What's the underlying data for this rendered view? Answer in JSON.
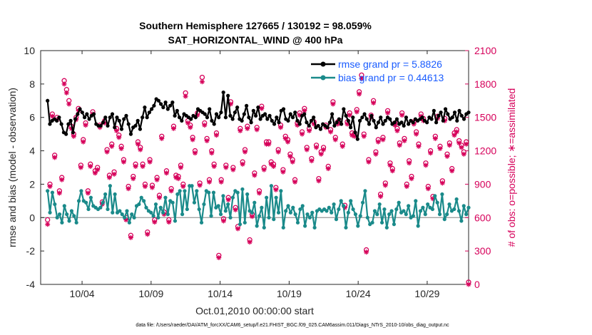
{
  "chart_data": {
    "type": "line",
    "title_line1": "Southern Hemisphere 127665 / 130192 = 98.059%",
    "title_line2": "SAT_HORIZONTAL_WIND @ 400 hPa",
    "xlabel": "Oct.01,2010 00:00:00 start",
    "ylabel_left": "rmse and bias (model - observation)",
    "ylabel_right": "# of obs: o=possible; ∗=assimilated",
    "footnote": "data file: /Users/raeder/DAI/ATM_forcXX/CAM6_setup/f.e21.FHIST_BGC.f09_025.CAM6assim.011/Diags_NTrS_2010-10/obs_diag_output.nc",
    "xlim": [
      1,
      32
    ],
    "ylim_left": [
      -4,
      10
    ],
    "ylim_right": [
      0,
      2100
    ],
    "x_tick_labels": [
      "10/04",
      "10/09",
      "10/14",
      "10/19",
      "10/24",
      "10/29"
    ],
    "x_tick_values": [
      4,
      9,
      14,
      19,
      24,
      29
    ],
    "y_left_ticks": [
      -4,
      -2,
      0,
      2,
      4,
      6,
      8,
      10
    ],
    "y_right_ticks": [
      0,
      300,
      600,
      900,
      1200,
      1500,
      1800,
      2100
    ],
    "series": [
      {
        "name": "rmse grand pr = 5.8826",
        "color": "#000000",
        "marker": "circle",
        "values": [
          7.0,
          5.6,
          5.8,
          5.9,
          5.8,
          6.0,
          5.6,
          5.1,
          5.0,
          5.6,
          5.8,
          5.1,
          5.9,
          6.2,
          6.5,
          6.3,
          6.0,
          6.2,
          5.9,
          6.1,
          6.2,
          5.6,
          5.5,
          5.5,
          5.7,
          6.0,
          5.5,
          6.0,
          6.2,
          5.4,
          6.0,
          5.8,
          5.3,
          5.9,
          6.1,
          5.6,
          5.0,
          5.4,
          5.5,
          5.8,
          5.3,
          6.0,
          6.6,
          6.0,
          6.3,
          6.5,
          6.7,
          7.1,
          7.0,
          6.8,
          6.6,
          6.9,
          6.5,
          6.7,
          6.9,
          6.1,
          6.4,
          6.0,
          5.8,
          6.2,
          6.1,
          6.0,
          5.9,
          6.1,
          6.0,
          6.5,
          6.4,
          6.3,
          6.2,
          6.0,
          6.5,
          5.8,
          5.6,
          6.2,
          6.0,
          6.3,
          7.5,
          6.0,
          7.3,
          6.1,
          5.9,
          6.3,
          6.6,
          5.9,
          5.8,
          6.2,
          6.7,
          6.0,
          5.7,
          6.4,
          6.1,
          6.6,
          5.9,
          6.1,
          6.2,
          5.9,
          6.1,
          5.8,
          5.6,
          6.0,
          5.7,
          6.4,
          6.5,
          5.9,
          5.8,
          6.2,
          6.0,
          6.3,
          5.8,
          5.6,
          6.1,
          6.2,
          5.7,
          5.5,
          5.8,
          6.0,
          5.4,
          5.5,
          5.3,
          5.6,
          5.5,
          5.4,
          5.7,
          6.2,
          5.5,
          5.7,
          5.9,
          5.6,
          6.5,
          6.1,
          5.8,
          5.4,
          6.0,
          5.1,
          4.7,
          5.8,
          6.0,
          6.2,
          5.9,
          5.6,
          6.1,
          5.8,
          5.4,
          5.7,
          6.0,
          5.6,
          5.8,
          6.0,
          5.9,
          5.6,
          5.7,
          5.9,
          5.6,
          5.7,
          5.5,
          6.0,
          5.6,
          5.8,
          5.7,
          5.9,
          5.8,
          5.9,
          6.0,
          5.8,
          5.7,
          6.0,
          5.9,
          6.4,
          5.7,
          6.1,
          6.3,
          5.8,
          6.5,
          6.2,
          5.9,
          6.0,
          6.3,
          5.8,
          6.4,
          6.1,
          5.9,
          6.2,
          6.3
        ]
      },
      {
        "name": "bias grand pr = 0.44613",
        "color": "#1a8a8a",
        "marker": "circle",
        "values": [
          1.6,
          0.3,
          1.5,
          0.8,
          0.0,
          0.2,
          -0.3,
          0.7,
          0.2,
          -0.2,
          0.4,
          0.1,
          -0.3,
          1.0,
          1.6,
          1.0,
          0.9,
          0.5,
          1.2,
          0.7,
          0.6,
          0.5,
          0.6,
          0.9,
          1.4,
          0.5,
          1.9,
          0.3,
          1.4,
          0.3,
          0.4,
          0.2,
          0.0,
          0.4,
          -0.3,
          0.2,
          0.0,
          0.7,
          0.8,
          1.2,
          1.0,
          0.6,
          0.4,
          0.3,
          0.1,
          0.8,
          0.0,
          0.6,
          0.3,
          1.2,
          0.2,
          1.0,
          0.9,
          -0.2,
          1.4,
          1.6,
          0.2,
          1.6,
          0.5,
          1.9,
          1.9,
          0.9,
          1.6,
          0.5,
          -0.3,
          0.8,
          1.6,
          1.5,
          0.1,
          1.5,
          0.6,
          0.7,
          0.2,
          1.3,
          0.4,
          0.8,
          0.0,
          1.2,
          1.6,
          1.5,
          -0.4,
          1.7,
          -0.3,
          1.4,
          0.4,
          0.3,
          0.9,
          -0.5,
          0.1,
          0.6,
          -0.6,
          1.2,
          0.0,
          1.9,
          -0.1,
          1.2,
          0.3,
          1.6,
          -0.6,
          0.4,
          0.7,
          0.3,
          0.6,
          0.2,
          -0.3,
          0.5,
          0.7,
          -0.5,
          0.2,
          0.0,
          0.3,
          -0.6,
          0.4,
          0.5,
          0.4,
          0.5,
          0.4,
          0.6,
          0.3,
          0.8,
          -0.1,
          0.5,
          1.0,
          0.7,
          -0.6,
          0.3,
          1.0,
          0.5,
          0.2,
          -0.5,
          0.1,
          0.9,
          1.6,
          0.0,
          -0.4,
          -0.3,
          0.4,
          0.2,
          0.8,
          -0.3,
          0.5,
          -0.6,
          0.2,
          0.4,
          -0.4,
          0.5,
          0.9,
          0.3,
          0.4,
          0.2,
          0.7,
          0.0,
          0.1,
          1.0,
          -0.5,
          0.4,
          0.6,
          0.2,
          0.8,
          0.6,
          0.5,
          1.3,
          0.9,
          0.2,
          1.4,
          -0.1,
          0.2,
          0.8,
          0.4,
          0.5,
          1.1,
          0.4,
          -0.2,
          0.7,
          0.2,
          0.6
        ]
      },
      {
        "name": "# of obs assimilated",
        "color": "#d6005a",
        "marker": "asterisk",
        "axis": "right",
        "values": [
          540,
          880,
          1510,
          1140,
          1480,
          820,
          940,
          1800,
          1720,
          1620,
          1400,
          1330,
          1480,
          1560,
          1050,
          1280,
          1430,
          820,
          1060,
          1530,
          1000,
          1030,
          1410,
          720,
          1450,
          1190,
          960,
          1240,
          990,
          1380,
          1320,
          1220,
          1100,
          580,
          860,
          420,
          950,
          1060,
          1260,
          1210,
          1060,
          880,
          450,
          1100,
          870,
          560,
          940,
          780,
          1310,
          630,
          1000,
          560,
          840,
          1400,
          960,
          950,
          1050,
          880,
          1690,
          1450,
          1410,
          1300,
          1180,
          1520,
          890,
          1820,
          1430,
          1290,
          920,
          1180,
          1060,
          1340,
          240,
          920,
          570,
          1050,
          760,
          1620,
          1030,
          670,
          500,
          1380,
          1080,
          1190,
          1400,
          380,
          610,
          980,
          1390,
          820,
          1580,
          1030,
          1260,
          1260,
          1080,
          1060,
          850,
          1190,
          1410,
          1010,
          1310,
          1280,
          1150,
          1100,
          920,
          1430,
          1520,
          1350,
          1560,
          1210,
          1380,
          1110,
          1440,
          1230,
          930,
          1170,
          1210,
          1410,
          1040,
          1370,
          1620,
          1300,
          1440,
          1450,
          1240,
          690,
          1440,
          1520,
          1340,
          1330,
          1550,
          1710,
          1850,
          1330,
          290,
          1100,
          1500,
          1630,
          1170,
          1280,
          790,
          1300,
          890,
          1540,
          1070,
          1020,
          1430,
          1380,
          1250,
          1520,
          1290,
          880,
          1090,
          950,
          1440,
          1350,
          1240,
          1510,
          1470,
          1070,
          860,
          1180,
          770,
          1310,
          1490,
          1220,
          910,
          1470,
          1150,
          1250,
          1020,
          1340,
          1370,
          1270,
          1230,
          1170,
          1260,
          0
        ]
      },
      {
        "name": "# of obs possible",
        "color": "#d6005a",
        "marker": "circle-open",
        "axis": "right",
        "values": [
          580,
          900,
          1530,
          1160,
          1500,
          840,
          960,
          1830,
          1750,
          1650,
          1420,
          1350,
          1500,
          1580,
          1070,
          1300,
          1450,
          840,
          1080,
          1550,
          1020,
          1050,
          1430,
          740,
          1470,
          1210,
          980,
          1260,
          1010,
          1400,
          1340,
          1240,
          1120,
          600,
          880,
          440,
          970,
          1080,
          1280,
          1230,
          1080,
          900,
          470,
          1120,
          890,
          580,
          960,
          800,
          1330,
          650,
          1020,
          580,
          860,
          1420,
          980,
          970,
          1070,
          900,
          1720,
          1470,
          1430,
          1320,
          1200,
          1540,
          910,
          1860,
          1450,
          1310,
          940,
          1200,
          1080,
          1360,
          260,
          940,
          590,
          1070,
          780,
          1640,
          1050,
          690,
          520,
          1400,
          1100,
          1210,
          1420,
          400,
          630,
          1000,
          1410,
          840,
          1600,
          1050,
          1280,
          1280,
          1100,
          1080,
          870,
          1210,
          1430,
          1030,
          1330,
          1300,
          1170,
          1120,
          940,
          1450,
          1540,
          1370,
          1580,
          1230,
          1400,
          1130,
          1460,
          1250,
          950,
          1190,
          1230,
          1430,
          1060,
          1390,
          1640,
          1320,
          1460,
          1470,
          1260,
          710,
          1460,
          1540,
          1360,
          1350,
          1570,
          1730,
          1880,
          1350,
          310,
          1120,
          1520,
          1650,
          1190,
          1300,
          810,
          1320,
          910,
          1560,
          1090,
          1040,
          1450,
          1400,
          1270,
          1540,
          1310,
          900,
          1110,
          970,
          1460,
          1370,
          1260,
          1530,
          1490,
          1090,
          880,
          1200,
          790,
          1330,
          1510,
          1240,
          930,
          1490,
          1170,
          1270,
          1040,
          1360,
          1390,
          1290,
          1250,
          1190,
          1280,
          20
        ]
      }
    ]
  }
}
